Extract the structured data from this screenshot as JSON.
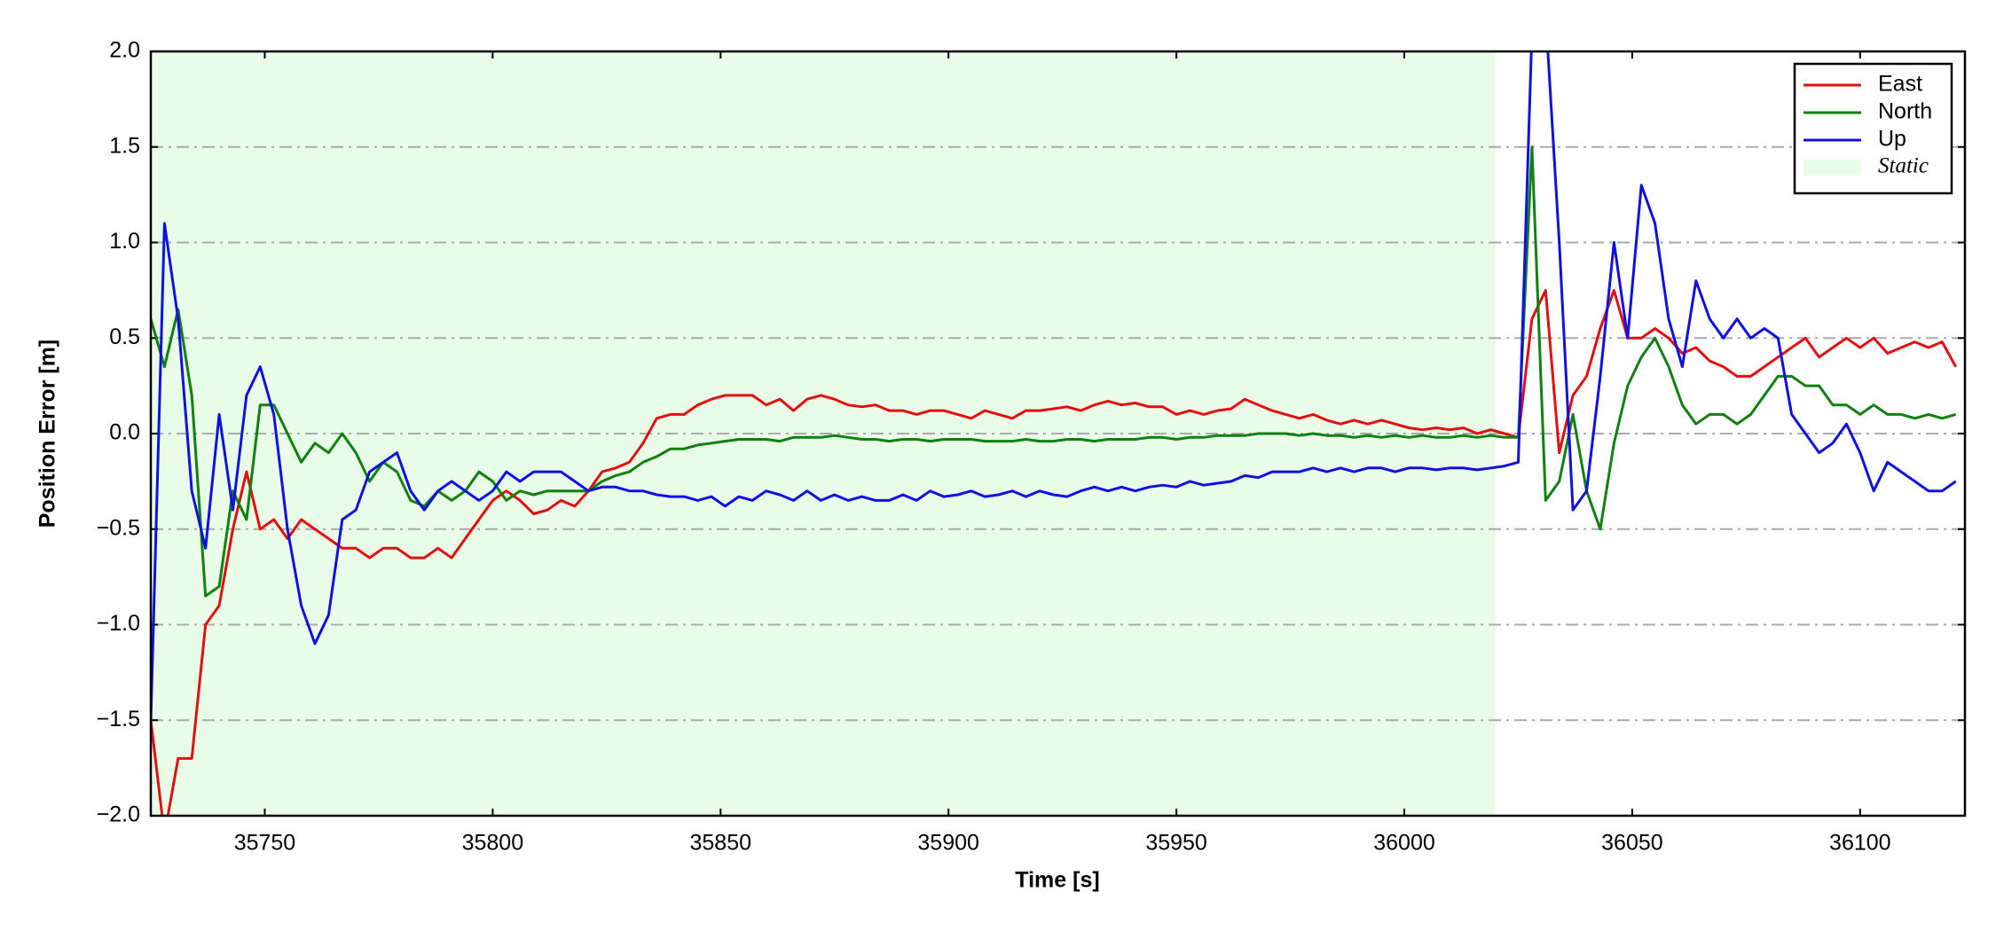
{
  "chart_data": {
    "type": "line",
    "xlabel": "Time [s]",
    "ylabel": "Position Error [m]",
    "x": [
      35725,
      35728,
      35731,
      35734,
      35737,
      35740,
      35743,
      35746,
      35749,
      35752,
      35755,
      35758,
      35761,
      35764,
      35767,
      35770,
      35773,
      35776,
      35779,
      35782,
      35785,
      35788,
      35791,
      35794,
      35797,
      35800,
      35803,
      35806,
      35809,
      35812,
      35815,
      35818,
      35821,
      35824,
      35827,
      35830,
      35833,
      35836,
      35839,
      35842,
      35845,
      35848,
      35851,
      35854,
      35857,
      35860,
      35863,
      35866,
      35869,
      35872,
      35875,
      35878,
      35881,
      35884,
      35887,
      35890,
      35893,
      35896,
      35899,
      35902,
      35905,
      35908,
      35911,
      35914,
      35917,
      35920,
      35923,
      35926,
      35929,
      35932,
      35935,
      35938,
      35941,
      35944,
      35947,
      35950,
      35953,
      35956,
      35959,
      35962,
      35965,
      35968,
      35971,
      35974,
      35977,
      35980,
      35983,
      35986,
      35989,
      35992,
      35995,
      35998,
      36001,
      36004,
      36007,
      36010,
      36013,
      36016,
      36019,
      36022,
      36025,
      36028,
      36031,
      36034,
      36037,
      36040,
      36043,
      36046,
      36049,
      36052,
      36055,
      36058,
      36061,
      36064,
      36067,
      36070,
      36073,
      36076,
      36079,
      36082,
      36085,
      36088,
      36091,
      36094,
      36097,
      36100,
      36103,
      36106,
      36109,
      36112,
      36115,
      36118,
      36121
    ],
    "series": [
      {
        "name": "East",
        "color": "#e01010",
        "values": [
          -1.5,
          -2.1,
          -1.7,
          -1.7,
          -1.0,
          -0.9,
          -0.5,
          -0.2,
          -0.5,
          -0.45,
          -0.55,
          -0.45,
          -0.5,
          -0.55,
          -0.6,
          -0.6,
          -0.65,
          -0.6,
          -0.6,
          -0.65,
          -0.65,
          -0.6,
          -0.65,
          -0.55,
          -0.45,
          -0.35,
          -0.3,
          -0.35,
          -0.42,
          -0.4,
          -0.35,
          -0.38,
          -0.3,
          -0.2,
          -0.18,
          -0.15,
          -0.05,
          0.08,
          0.1,
          0.1,
          0.15,
          0.18,
          0.2,
          0.2,
          0.2,
          0.15,
          0.18,
          0.12,
          0.18,
          0.2,
          0.18,
          0.15,
          0.14,
          0.15,
          0.12,
          0.12,
          0.1,
          0.12,
          0.12,
          0.1,
          0.08,
          0.12,
          0.1,
          0.08,
          0.12,
          0.12,
          0.13,
          0.14,
          0.12,
          0.15,
          0.17,
          0.15,
          0.16,
          0.14,
          0.14,
          0.1,
          0.12,
          0.1,
          0.12,
          0.13,
          0.18,
          0.15,
          0.12,
          0.1,
          0.08,
          0.1,
          0.07,
          0.05,
          0.07,
          0.05,
          0.07,
          0.05,
          0.03,
          0.02,
          0.03,
          0.02,
          0.03,
          0.0,
          0.02,
          0.0,
          -0.02,
          0.6,
          0.75,
          -0.1,
          0.2,
          0.3,
          0.55,
          0.75,
          0.5,
          0.5,
          0.55,
          0.5,
          0.42,
          0.45,
          0.38,
          0.35,
          0.3,
          0.3,
          0.35,
          0.4,
          0.45,
          0.5,
          0.4,
          0.45,
          0.5,
          0.45,
          0.5,
          0.42,
          0.45,
          0.48,
          0.45,
          0.48,
          0.35
        ]
      },
      {
        "name": "North",
        "color": "#108010",
        "values": [
          0.6,
          0.35,
          0.65,
          0.2,
          -0.85,
          -0.8,
          -0.3,
          -0.45,
          0.15,
          0.15,
          0.0,
          -0.15,
          -0.05,
          -0.1,
          0.0,
          -0.1,
          -0.25,
          -0.15,
          -0.2,
          -0.35,
          -0.38,
          -0.3,
          -0.35,
          -0.3,
          -0.2,
          -0.25,
          -0.35,
          -0.3,
          -0.32,
          -0.3,
          -0.3,
          -0.3,
          -0.3,
          -0.25,
          -0.22,
          -0.2,
          -0.15,
          -0.12,
          -0.08,
          -0.08,
          -0.06,
          -0.05,
          -0.04,
          -0.03,
          -0.03,
          -0.03,
          -0.04,
          -0.02,
          -0.02,
          -0.02,
          -0.01,
          -0.02,
          -0.03,
          -0.03,
          -0.04,
          -0.03,
          -0.03,
          -0.04,
          -0.03,
          -0.03,
          -0.03,
          -0.04,
          -0.04,
          -0.04,
          -0.03,
          -0.04,
          -0.04,
          -0.03,
          -0.03,
          -0.04,
          -0.03,
          -0.03,
          -0.03,
          -0.02,
          -0.02,
          -0.03,
          -0.02,
          -0.02,
          -0.01,
          -0.01,
          -0.01,
          0.0,
          0.0,
          0.0,
          -0.01,
          0.0,
          -0.01,
          -0.01,
          -0.02,
          -0.01,
          -0.02,
          -0.01,
          -0.02,
          -0.01,
          -0.02,
          -0.02,
          -0.01,
          -0.02,
          -0.01,
          -0.02,
          -0.02,
          1.5,
          -0.35,
          -0.25,
          0.1,
          -0.3,
          -0.5,
          -0.05,
          0.25,
          0.4,
          0.5,
          0.35,
          0.15,
          0.05,
          0.1,
          0.1,
          0.05,
          0.1,
          0.2,
          0.3,
          0.3,
          0.25,
          0.25,
          0.15,
          0.15,
          0.1,
          0.15,
          0.1,
          0.1,
          0.08,
          0.1,
          0.08,
          0.1
        ]
      },
      {
        "name": "Up",
        "color": "#1010e0",
        "values": [
          -1.5,
          1.1,
          0.6,
          -0.3,
          -0.6,
          0.1,
          -0.4,
          0.2,
          0.35,
          0.1,
          -0.5,
          -0.9,
          -1.1,
          -0.95,
          -0.45,
          -0.4,
          -0.2,
          -0.15,
          -0.1,
          -0.3,
          -0.4,
          -0.3,
          -0.25,
          -0.3,
          -0.35,
          -0.3,
          -0.2,
          -0.25,
          -0.2,
          -0.2,
          -0.2,
          -0.25,
          -0.3,
          -0.28,
          -0.28,
          -0.3,
          -0.3,
          -0.32,
          -0.33,
          -0.33,
          -0.35,
          -0.33,
          -0.38,
          -0.33,
          -0.35,
          -0.3,
          -0.32,
          -0.35,
          -0.3,
          -0.35,
          -0.32,
          -0.35,
          -0.33,
          -0.35,
          -0.35,
          -0.32,
          -0.35,
          -0.3,
          -0.33,
          -0.32,
          -0.3,
          -0.33,
          -0.32,
          -0.3,
          -0.33,
          -0.3,
          -0.32,
          -0.33,
          -0.3,
          -0.28,
          -0.3,
          -0.28,
          -0.3,
          -0.28,
          -0.27,
          -0.28,
          -0.25,
          -0.27,
          -0.26,
          -0.25,
          -0.22,
          -0.23,
          -0.2,
          -0.2,
          -0.2,
          -0.18,
          -0.2,
          -0.18,
          -0.2,
          -0.18,
          -0.18,
          -0.2,
          -0.18,
          -0.18,
          -0.19,
          -0.18,
          -0.18,
          -0.19,
          -0.18,
          -0.17,
          -0.15,
          2.1,
          2.2,
          1.0,
          -0.4,
          -0.3,
          0.3,
          1.0,
          0.5,
          1.3,
          1.1,
          0.6,
          0.35,
          0.8,
          0.6,
          0.5,
          0.6,
          0.5,
          0.55,
          0.5,
          0.1,
          0.0,
          -0.1,
          -0.05,
          0.05,
          -0.1,
          -0.3,
          -0.15,
          -0.2,
          -0.25,
          -0.3,
          -0.3,
          -0.25
        ]
      }
    ],
    "span": {
      "name": "Static",
      "x": [
        35725,
        36020
      ],
      "color": "#e8fce8"
    },
    "xlim": [
      35725,
      36123
    ],
    "ylim": [
      -2,
      2
    ],
    "xticks": [
      35750,
      35800,
      35850,
      35900,
      35950,
      36000,
      36050,
      36100
    ],
    "yticks": [
      {
        "value": -2,
        "label": "−2.0"
      },
      {
        "value": -1.5,
        "label": "−1.5"
      },
      {
        "value": -1,
        "label": "−1.0"
      },
      {
        "value": -0.5,
        "label": "−0.5"
      },
      {
        "value": 0,
        "label": "0.0"
      },
      {
        "value": 0.5,
        "label": "0.5"
      },
      {
        "value": 1,
        "label": "1.0"
      },
      {
        "value": 1.5,
        "label": "1.5"
      },
      {
        "value": 2,
        "label": "2.0"
      }
    ],
    "grid": true,
    "legend": "upper right"
  }
}
